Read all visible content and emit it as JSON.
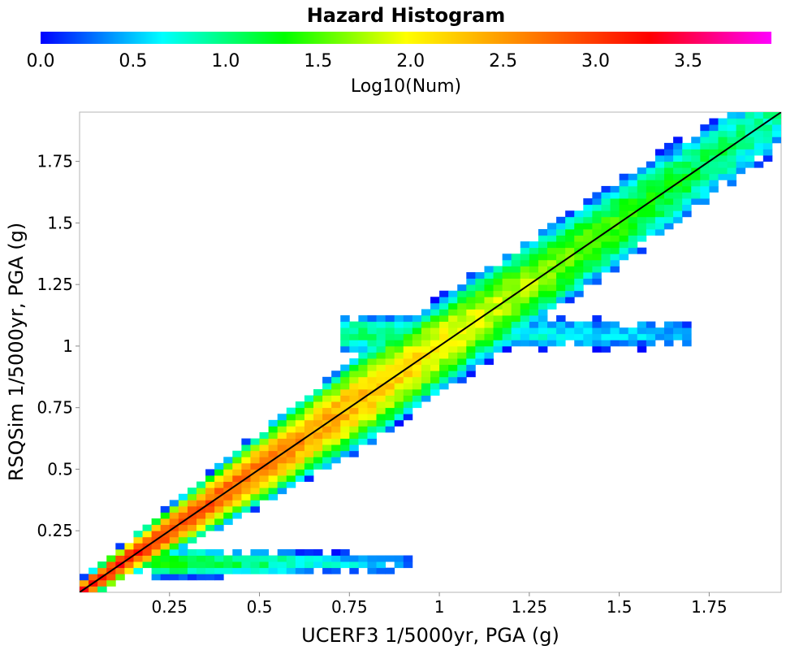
{
  "chart_data": {
    "type": "heatmap",
    "title": "Hazard Histogram",
    "xlabel": "UCERF3 1/5000yr, PGA (g)",
    "ylabel": "RSQSim 1/5000yr, PGA (g)",
    "xlim": [
      0.0,
      1.95
    ],
    "ylim": [
      0.0,
      1.95
    ],
    "x_tick_labels": [
      "0.25",
      "0.5",
      "0.75",
      "1",
      "1.25",
      "1.5",
      "1.75"
    ],
    "x_tick_values": [
      0.25,
      0.5,
      0.75,
      1.0,
      1.25,
      1.5,
      1.75
    ],
    "y_tick_labels": [
      "0.25",
      "0.5",
      "0.75",
      "1",
      "1.25",
      "1.5",
      "1.75"
    ],
    "y_tick_values": [
      0.25,
      0.5,
      0.75,
      1.0,
      1.25,
      1.5,
      1.75
    ],
    "bin_width": 0.025,
    "reference_line": {
      "x": [
        0.0,
        1.95
      ],
      "y": [
        0.0,
        1.95
      ],
      "color": "#000000"
    },
    "colorbar": {
      "label": "Log10(Num)",
      "range": [
        0.0,
        3.95
      ],
      "tick_labels": [
        "0.0",
        "0.5",
        "1.0",
        "1.5",
        "2.0",
        "2.5",
        "3.0",
        "3.5"
      ],
      "tick_values": [
        0.0,
        0.5,
        1.0,
        1.5,
        2.0,
        2.5,
        3.0,
        3.5
      ],
      "colors": [
        "#0000ff",
        "#00ffff",
        "#00ff00",
        "#ffff00",
        "#ff8000",
        "#ff0000",
        "#ff00ff"
      ]
    },
    "density_structure": {
      "main_band": {
        "x_range": [
          0.0,
          1.95
        ],
        "slope": 1.0,
        "peak_log10_near_origin": 3.3
      },
      "upper_branch": {
        "x_range": [
          0.73,
          1.7
        ],
        "y_approx": 1.05
      },
      "lower_branch": {
        "x_range": [
          0.2,
          0.93
        ],
        "y_approx": 0.12
      }
    }
  }
}
